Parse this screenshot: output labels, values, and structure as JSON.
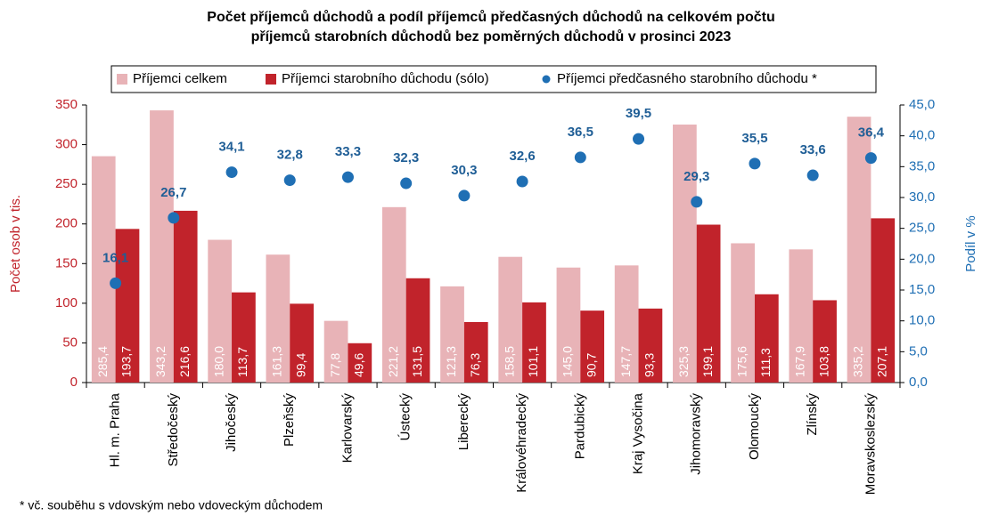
{
  "chart_data": {
    "type": "bar",
    "title": "Počet příjemců důchodů a podíl příjemců předčasných důchodů na celkovém počtu",
    "subtitle": "příjemců starobních důchodů bez poměrných důchodů v prosinci 2023",
    "ylabel": "Počet osob v tis.",
    "y2label": "Podíl v %",
    "footnote": "* vč. souběhu s vdovským nebo vdoveckým důchodem",
    "legend_position": "top",
    "categories": [
      "Hl. m. Praha",
      "Středočeský",
      "Jihočeský",
      "Plzeňský",
      "Karlovarský",
      "Ústecký",
      "Liberecký",
      "Královéhradecký",
      "Pardubický",
      "Kraj Vysočina",
      "Jihomoravský",
      "Olomoucký",
      "Zlínský",
      "Moravskoslezský"
    ],
    "series": [
      {
        "name": "Příjemci celkem",
        "color": "#e8b3b7",
        "type": "bar",
        "values": [
          285.4,
          343.2,
          180.0,
          161.3,
          77.8,
          221.2,
          121.3,
          158.5,
          145.0,
          147.7,
          325.3,
          175.6,
          167.9,
          335.2
        ],
        "value_labels": [
          "285,4",
          "343,2",
          "180,0",
          "161,3",
          "77,8",
          "221,2",
          "121,3",
          "158,5",
          "145,0",
          "147,7",
          "325,3",
          "175,6",
          "167,9",
          "335,2"
        ]
      },
      {
        "name": "Příjemci starobního důchodu (sólo)",
        "color": "#c1232b",
        "type": "bar",
        "values": [
          193.7,
          216.6,
          113.7,
          99.4,
          49.6,
          131.5,
          76.3,
          101.1,
          90.7,
          93.3,
          199.1,
          111.3,
          103.8,
          207.1
        ],
        "value_labels": [
          "193,7",
          "216,6",
          "113,7",
          "99,4",
          "49,6",
          "131,5",
          "76,3",
          "101,1",
          "90,7",
          "93,3",
          "199,1",
          "111,3",
          "103,8",
          "207,1"
        ]
      },
      {
        "name": "Příjemci předčasného starobního důchodu *",
        "color": "#1f6fb4",
        "type": "scatter",
        "axis": "y2",
        "values": [
          16.1,
          26.7,
          34.1,
          32.8,
          33.3,
          32.3,
          30.3,
          32.6,
          36.5,
          39.5,
          29.3,
          35.5,
          33.6,
          36.4
        ],
        "value_labels": [
          "16,1",
          "26,7",
          "34,1",
          "32,8",
          "33,3",
          "32,3",
          "30,3",
          "32,6",
          "36,5",
          "39,5",
          "29,3",
          "35,5",
          "33,6",
          "36,4"
        ]
      }
    ],
    "ylim": [
      0,
      350
    ],
    "yticks": [
      0,
      50,
      100,
      150,
      200,
      250,
      300,
      350
    ],
    "y2lim": [
      0,
      45
    ],
    "y2ticks": [
      {
        "value": 0,
        "label": "0,0"
      },
      {
        "value": 5,
        "label": "5,0"
      },
      {
        "value": 10,
        "label": "10,0"
      },
      {
        "value": 15,
        "label": "15,0"
      },
      {
        "value": 20,
        "label": "20,0"
      },
      {
        "value": 25,
        "label": "25,0"
      },
      {
        "value": 30,
        "label": "30,0"
      },
      {
        "value": 35,
        "label": "35,0"
      },
      {
        "value": 40,
        "label": "40,0"
      },
      {
        "value": 45,
        "label": "45,0"
      }
    ],
    "grid": false
  }
}
